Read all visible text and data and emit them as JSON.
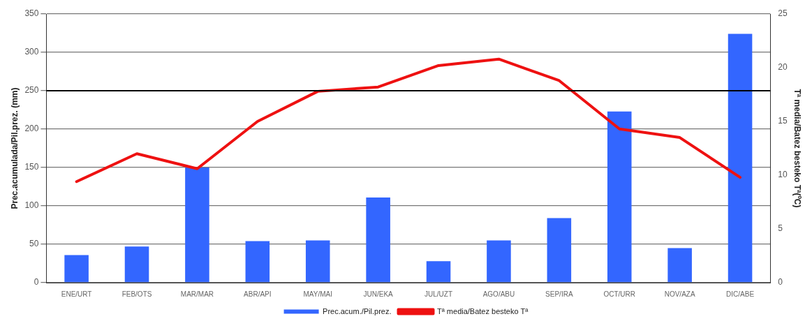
{
  "chart_data": {
    "type": "bar",
    "ylabel": "Prec.acumulada/Pil.prez. (mm)",
    "y2label": "Tª media/Batez besteko Tª(ºC)",
    "categories": [
      "ENE/URT",
      "FEB/OTS",
      "MAR/MAR",
      "ABR/API",
      "MAY/MAI",
      "JUN/EKA",
      "JUL/UZT",
      "AGO/ABU",
      "SEP/IRA",
      "OCT/URR",
      "NOV/AZA",
      "DIC/ABE"
    ],
    "series": [
      {
        "name": "Prec.acum./Pil.prez.",
        "color": "#3366ff",
        "values": [
          36,
          47,
          150,
          54,
          55,
          111,
          28,
          55,
          84,
          223,
          45,
          324
        ]
      },
      {
        "name": "Tª media/Batez besteko Tª",
        "type": "line",
        "axis": "y2",
        "color": "#ee1111",
        "values": [
          9.4,
          12,
          10.6,
          15,
          17.8,
          18.2,
          20.2,
          20.8,
          18.8,
          14.3,
          13.5,
          9.8
        ]
      }
    ],
    "ylim": [
      0,
      350
    ],
    "yticks": [
      0,
      50,
      100,
      150,
      200,
      250,
      300,
      350
    ],
    "y2lim": [
      0,
      25
    ],
    "y2ticks": [
      0,
      5,
      10,
      15,
      20,
      25
    ],
    "ref_lines": [
      {
        "axis": "y",
        "value": 250,
        "color": "#000000"
      }
    ],
    "grid": "y",
    "legend": "bottom",
    "marker": "none"
  }
}
